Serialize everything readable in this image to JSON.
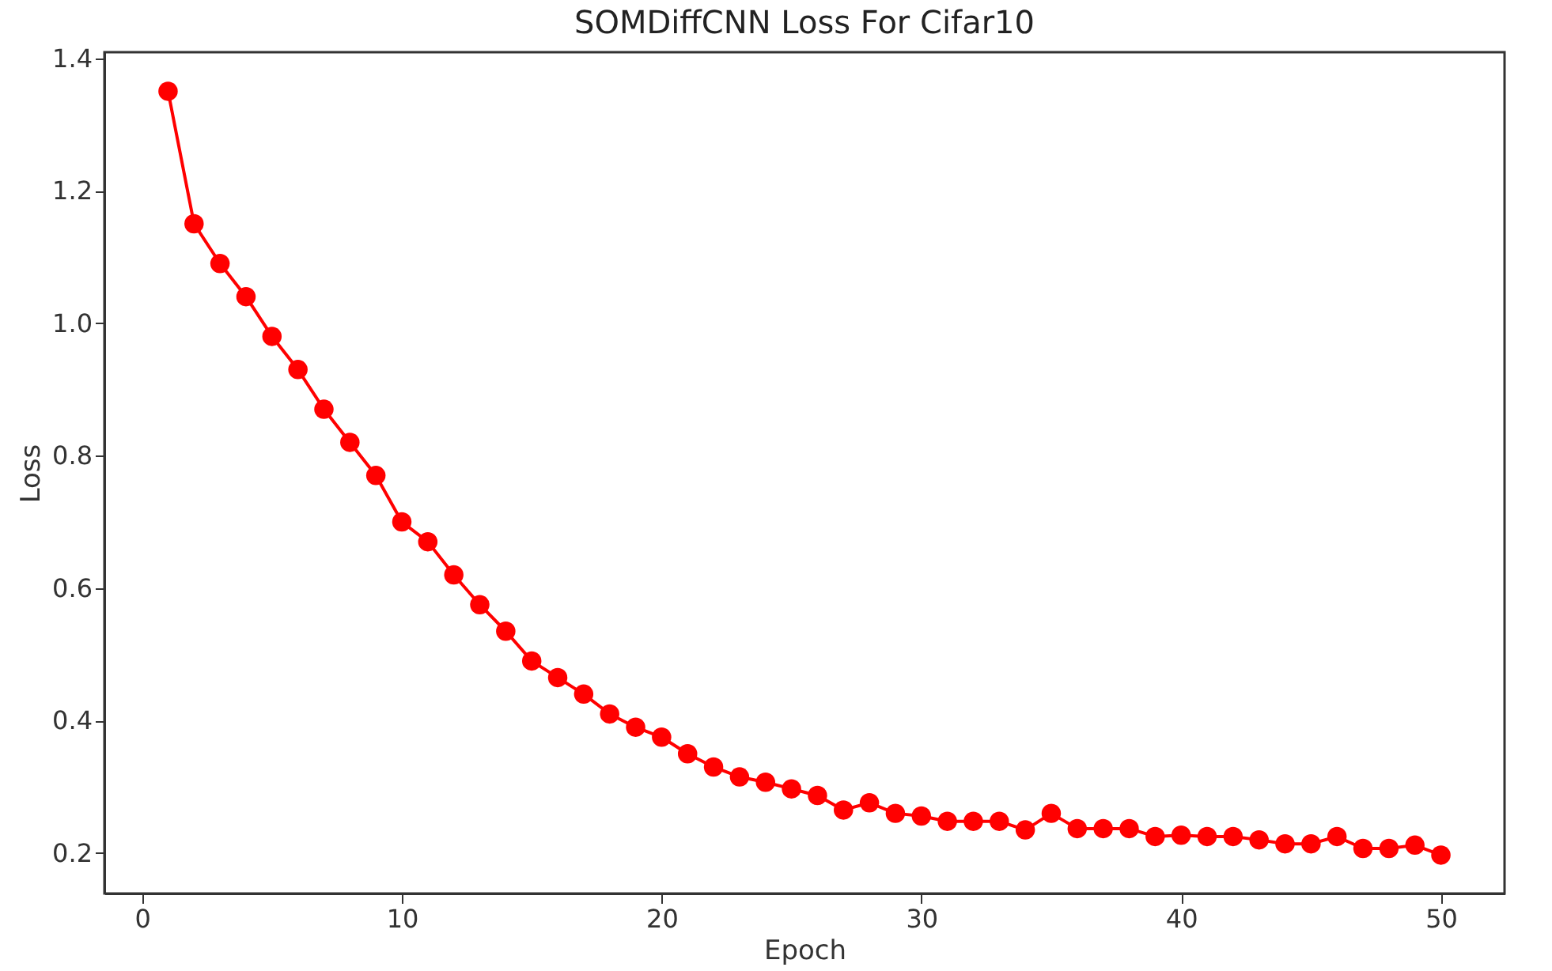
{
  "chart_data": {
    "type": "line",
    "title": "SOMDiffCNN Loss For Cifar10",
    "xlabel": "Epoch",
    "ylabel": "Loss",
    "x": [
      1,
      2,
      3,
      4,
      5,
      6,
      7,
      8,
      9,
      10,
      11,
      12,
      13,
      14,
      15,
      16,
      17,
      18,
      19,
      20,
      21,
      22,
      23,
      24,
      25,
      26,
      27,
      28,
      29,
      30,
      31,
      32,
      33,
      34,
      35,
      36,
      37,
      38,
      39,
      40,
      41,
      42,
      43,
      44,
      45,
      46,
      47,
      48,
      49,
      50
    ],
    "series": [
      {
        "color": "#ff0000",
        "values": [
          1.35,
          1.15,
          1.09,
          1.04,
          0.98,
          0.93,
          0.87,
          0.82,
          0.77,
          0.7,
          0.67,
          0.62,
          0.575,
          0.535,
          0.49,
          0.465,
          0.44,
          0.41,
          0.39,
          0.375,
          0.35,
          0.33,
          0.315,
          0.307,
          0.297,
          0.287,
          0.265,
          0.276,
          0.26,
          0.256,
          0.248,
          0.248,
          0.248,
          0.235,
          0.26,
          0.237,
          0.237,
          0.237,
          0.225,
          0.227,
          0.225,
          0.225,
          0.22,
          0.214,
          0.214,
          0.225,
          0.207,
          0.207,
          0.212,
          0.197
        ]
      }
    ],
    "xlim": [
      -1.45,
      52.45
    ],
    "xticks": [
      0,
      10,
      20,
      30,
      40,
      50
    ],
    "ylim": [
      0.139,
      1.409
    ],
    "yticks": [
      0.2,
      0.4,
      0.6,
      0.8,
      {
        "value": 1,
        "label": "1.0"
      },
      1.2,
      1.4
    ],
    "marker": "circle",
    "line_style": "solid",
    "grid": false,
    "legend": false
  }
}
